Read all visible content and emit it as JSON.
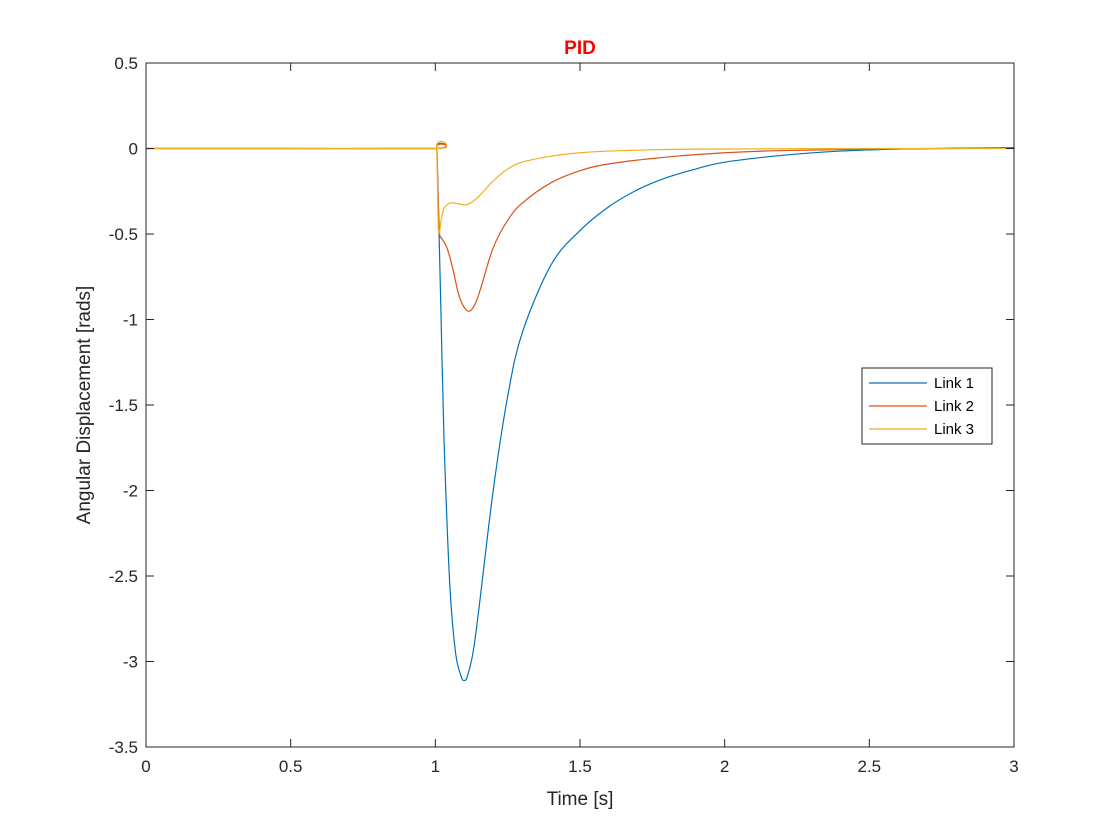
{
  "chart_data": {
    "type": "line",
    "title": "PID",
    "title_color": "#ff0000",
    "xlabel": "Time [s]",
    "ylabel": "Angular Displacement [rads]",
    "xlim": [
      0,
      3
    ],
    "ylim": [
      -3.5,
      0.5
    ],
    "xticks": [
      0,
      0.5,
      1,
      1.5,
      2,
      2.5,
      3
    ],
    "xtick_labels": [
      "0",
      "0.5",
      "1",
      "1.5",
      "2",
      "2.5",
      "3"
    ],
    "yticks": [
      -3.5,
      -3,
      -2.5,
      -2,
      -1.5,
      -1,
      -0.5,
      0,
      0.5
    ],
    "ytick_labels": [
      "-3.5",
      "-3",
      "-2.5",
      "-2",
      "-1.5",
      "-1",
      "-0.5",
      "0",
      "0.5"
    ],
    "grid": false,
    "legend_position": "right",
    "series": [
      {
        "name": "Link 1",
        "color": "#0072bd",
        "x": [
          0,
          0.5,
          1.0,
          1.005,
          1.01,
          1.02,
          1.03,
          1.05,
          1.07,
          1.09,
          1.1,
          1.11,
          1.13,
          1.15,
          1.2,
          1.25,
          1.3,
          1.4,
          1.5,
          1.6,
          1.7,
          1.8,
          1.9,
          2.0,
          2.2,
          2.4,
          2.6,
          2.8,
          3.0
        ],
        "y": [
          0,
          0,
          0,
          0.01,
          -0.3,
          -1.0,
          -1.7,
          -2.55,
          -2.95,
          -3.09,
          -3.11,
          -3.09,
          -2.95,
          -2.7,
          -2.0,
          -1.45,
          -1.08,
          -0.68,
          -0.48,
          -0.34,
          -0.24,
          -0.17,
          -0.12,
          -0.08,
          -0.04,
          -0.015,
          -0.003,
          0.002,
          0.005
        ]
      },
      {
        "name": "Link 2",
        "color": "#d95319",
        "x": [
          0,
          0.5,
          1.0,
          1.005,
          1.01,
          1.015,
          1.02,
          1.04,
          1.06,
          1.08,
          1.1,
          1.12,
          1.14,
          1.16,
          1.2,
          1.25,
          1.3,
          1.4,
          1.5,
          1.6,
          1.8,
          2.0,
          2.2,
          2.5,
          3.0
        ],
        "y": [
          0,
          0,
          0,
          0.005,
          -0.3,
          -0.5,
          -0.52,
          -0.58,
          -0.7,
          -0.85,
          -0.93,
          -0.95,
          -0.9,
          -0.8,
          -0.58,
          -0.42,
          -0.32,
          -0.2,
          -0.13,
          -0.09,
          -0.05,
          -0.025,
          -0.012,
          -0.004,
          0.002
        ]
      },
      {
        "name": "Link 3",
        "color": "#edb120",
        "x": [
          0,
          0.5,
          1.0,
          1.005,
          1.01,
          1.015,
          1.02,
          1.03,
          1.05,
          1.07,
          1.1,
          1.12,
          1.15,
          1.2,
          1.25,
          1.3,
          1.4,
          1.5,
          1.6,
          1.8,
          2.0,
          2.5,
          3.0
        ],
        "y": [
          0,
          0,
          0,
          0.01,
          -0.45,
          -0.48,
          -0.42,
          -0.35,
          -0.32,
          -0.32,
          -0.33,
          -0.32,
          -0.28,
          -0.19,
          -0.12,
          -0.08,
          -0.045,
          -0.025,
          -0.015,
          -0.006,
          -0.003,
          0,
          0
        ]
      }
    ]
  }
}
